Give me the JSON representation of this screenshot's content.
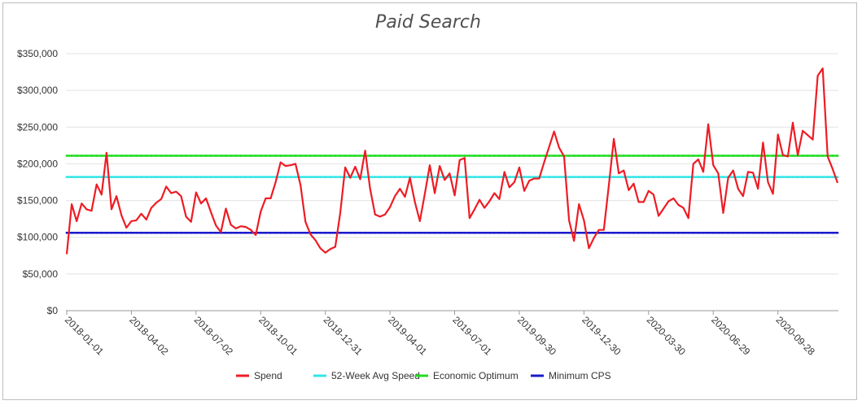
{
  "chart_data": {
    "type": "line",
    "title": "Paid Search",
    "xlabel": "",
    "ylabel": "",
    "ylim": [
      0,
      350000
    ],
    "y_ticks": [
      "$0",
      "$50,000",
      "$100,000",
      "$150,000",
      "$200,000",
      "$250,000",
      "$300,000",
      "$350,000"
    ],
    "y_tick_values": [
      0,
      50000,
      100000,
      150000,
      200000,
      250000,
      300000,
      350000
    ],
    "x_tick_labels": [
      "2018-01-01",
      "2018-04-02",
      "2018-07-02",
      "2018-10-01",
      "2018-12-31",
      "2019-04-01",
      "2019-07-01",
      "2019-09-30",
      "2019-12-30",
      "2020-03-30",
      "2020-06-29",
      "2020-09-28"
    ],
    "x_tick_indices": [
      0,
      13,
      26,
      39,
      52,
      65,
      78,
      91,
      104,
      117,
      130,
      143
    ],
    "grid": "horizontal",
    "legend_position": "bottom",
    "series": [
      {
        "name": "Spend",
        "color": "#ee1c24",
        "values": [
          77000,
          145000,
          122000,
          146000,
          138000,
          136000,
          172000,
          158000,
          215000,
          138000,
          156000,
          130000,
          113000,
          122000,
          123000,
          132000,
          124000,
          140000,
          147000,
          152000,
          169000,
          160000,
          162000,
          156000,
          128000,
          121000,
          161000,
          146000,
          153000,
          134000,
          116000,
          107000,
          139000,
          117000,
          112000,
          115000,
          114000,
          110000,
          103000,
          135000,
          153000,
          153000,
          175000,
          202000,
          197000,
          198000,
          200000,
          171000,
          121000,
          104000,
          96000,
          85000,
          79000,
          84000,
          87000,
          133000,
          195000,
          181000,
          196000,
          179000,
          218000,
          166000,
          131000,
          128000,
          131000,
          141000,
          156000,
          166000,
          155000,
          181000,
          148000,
          122000,
          159000,
          198000,
          160000,
          197000,
          178000,
          187000,
          157000,
          205000,
          208000,
          126000,
          138000,
          151000,
          140000,
          149000,
          160000,
          152000,
          189000,
          168000,
          175000,
          195000,
          163000,
          177000,
          180000,
          180000,
          202000,
          223000,
          244000,
          222000,
          210000,
          123000,
          95000,
          145000,
          123000,
          85000,
          99000,
          110000,
          110000,
          171000,
          234000,
          187000,
          191000,
          164000,
          173000,
          148000,
          148000,
          163000,
          158000,
          129000,
          139000,
          149000,
          153000,
          144000,
          140000,
          126000,
          200000,
          206000,
          189000,
          254000,
          198000,
          187000,
          133000,
          181000,
          191000,
          166000,
          156000,
          189000,
          188000,
          166000,
          229000,
          175000,
          159000,
          240000,
          212000,
          210000,
          256000,
          212000,
          245000,
          239000,
          233000,
          320000,
          330000,
          210000,
          193000,
          174000
        ]
      },
      {
        "name": "52-Week Avg Speed",
        "color": "#33e6e6",
        "constant": 182000
      },
      {
        "name": "Economic Optimum",
        "color": "#22dd22",
        "constant": 211000
      },
      {
        "name": "Minimum CPS",
        "color": "#1a1acc",
        "constant": 106000
      }
    ]
  }
}
